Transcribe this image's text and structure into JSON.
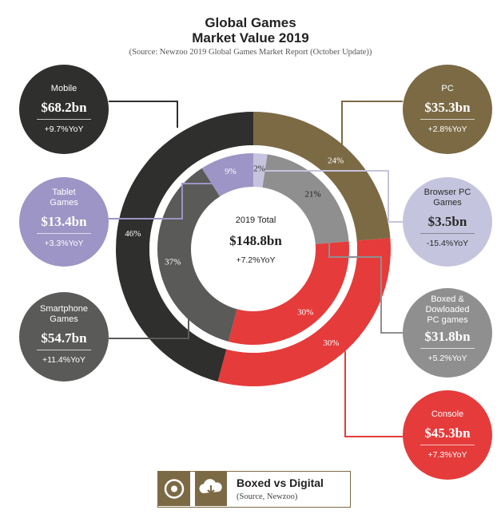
{
  "header": {
    "title_line1": "Global Games",
    "title_line2": "Market Value 2019",
    "source": "(Source: Newzoo 2019 Global Games Market Report (October Update))"
  },
  "center": {
    "title": "2019 Total",
    "value": "$148.8bn",
    "yoy": "+7.2%YoY"
  },
  "segments": [
    {
      "key": "mobile",
      "name": "Mobile",
      "value": "$68.2bn",
      "yoy": "+9.7%YoY",
      "color": "#2f2f2d"
    },
    {
      "key": "pc",
      "name": "PC",
      "value": "$35.3bn",
      "yoy": "+2.8%YoY",
      "color": "#7c6a45"
    },
    {
      "key": "tablet",
      "name": "Tablet Games",
      "value": "$13.4bn",
      "yoy": "+3.3%YoY",
      "color": "#9c95c5"
    },
    {
      "key": "browser",
      "name": "Browser PC Games",
      "value": "$3.5bn",
      "yoy": "-15.4%YoY",
      "color": "#c5c4de"
    },
    {
      "key": "smartphone",
      "name": "Smartphone Games",
      "value": "$54.7bn",
      "yoy": "+11.4%YoY",
      "color": "#5a5a58"
    },
    {
      "key": "boxed",
      "name": "Boxed & Dowloaded PC games",
      "value": "$31.8bn",
      "yoy": "+5.2%YoY",
      "color": "#8f8f8f"
    },
    {
      "key": "console",
      "name": "Console",
      "value": "$45.3bn",
      "yoy": "+7.3%YoY",
      "color": "#e53b3b"
    }
  ],
  "chart_data": {
    "type": "pie",
    "title": "Global Games Market Value 2019",
    "unit": "$bn",
    "total": 148.8,
    "outer_ring": [
      {
        "label": "PC",
        "value": 35.3,
        "percent": 24,
        "color": "#7c6a45"
      },
      {
        "label": "Console",
        "value": 45.3,
        "percent": 30,
        "color": "#e53b3b"
      },
      {
        "label": "Mobile",
        "value": 68.2,
        "percent": 46,
        "color": "#2f2f2d"
      }
    ],
    "inner_ring": [
      {
        "label": "Browser PC Games",
        "value": 3.5,
        "percent": 2,
        "color": "#c5c4de"
      },
      {
        "label": "Boxed & Dowloaded PC games",
        "value": 31.8,
        "percent": 21,
        "color": "#8f8f8f"
      },
      {
        "label": "Console",
        "value": 45.3,
        "percent": 30,
        "color": "#e53b3b"
      },
      {
        "label": "Smartphone Games",
        "value": 54.7,
        "percent": 37,
        "color": "#5a5a58"
      },
      {
        "label": "Tablet Games",
        "value": 13.4,
        "percent": 9,
        "color": "#9c95c5"
      }
    ]
  },
  "footer": {
    "title": "Boxed vs Digital",
    "source": "(Source, Newzoo)",
    "icon_left": "disc-icon",
    "icon_right": "cloud-download-icon",
    "color": "#7c6a45"
  }
}
